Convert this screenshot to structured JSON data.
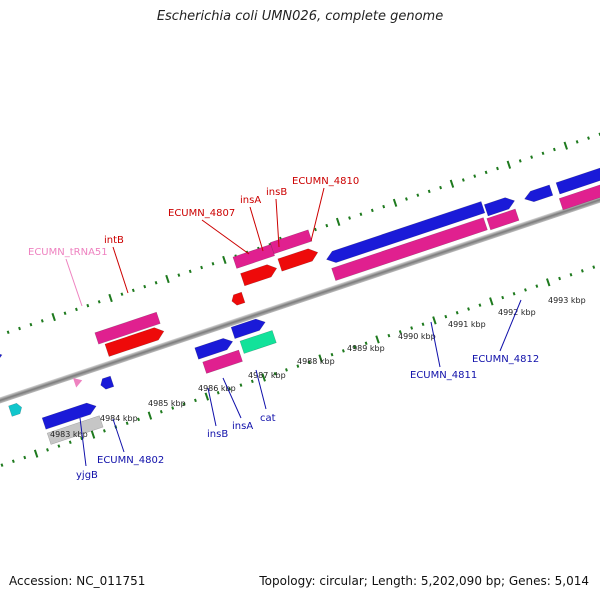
{
  "title": "Escherichia coli UMN026, complete genome",
  "footer": {
    "accession": "Accession: NC_011751",
    "summary": "Topology: circular; Length: 5,202,090 bp; Genes: 5,014"
  },
  "kbp_ticks": [
    "4983 kbp",
    "4984 kbp",
    "4985 kbp",
    "4986 kbp",
    "4987 kbp",
    "4988 kbp",
    "4989 kbp",
    "4990 kbp",
    "4991 kbp",
    "4992 kbp",
    "4993 kbp"
  ],
  "gene_labels": [
    "ECUMN_tRNA51",
    "intB",
    "ECUMN_4807",
    "insA",
    "insB",
    "ECUMN_4810",
    "yjgB",
    "ECUMN_4802",
    "insB",
    "insA",
    "cat",
    "ECUMN_4811",
    "ECUMN_4812"
  ],
  "colors": {
    "cds_blue": "#1a1ad8",
    "gene_magenta": "#e0208f",
    "cds_red": "#ee0a0a",
    "cyan": "#11c6cc",
    "teal": "#12e29a",
    "gray_feature": "#c6c6c6",
    "backbone": "#888888",
    "tick_green": "#1e7a1e",
    "label_red": "#cc0000",
    "label_blue": "#1010aa",
    "label_pink": "#ee82c0"
  }
}
